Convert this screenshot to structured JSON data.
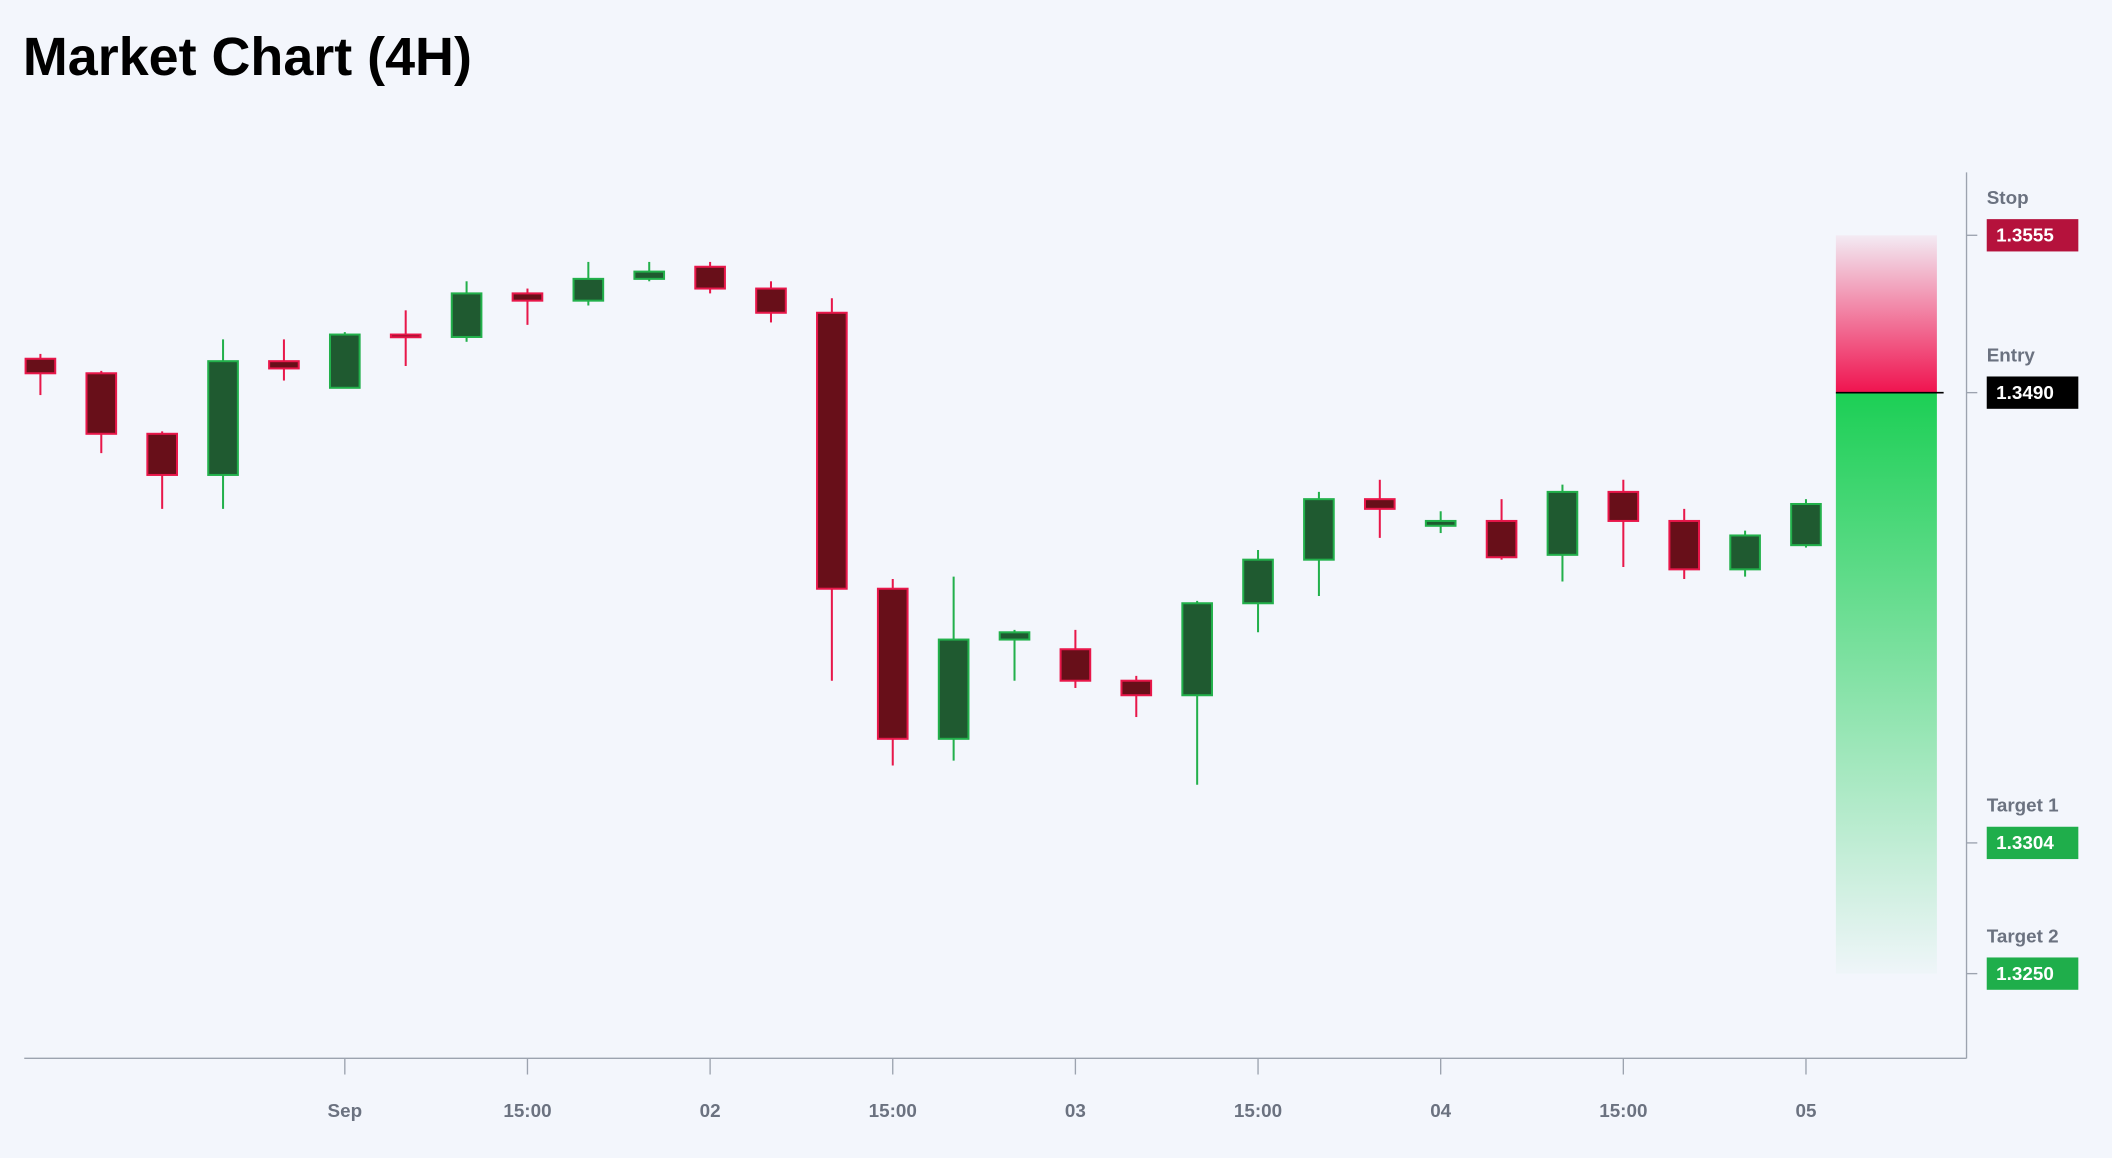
{
  "chart_data": {
    "type": "candlestick",
    "title": "Market Chart (4H)",
    "categories": [
      null,
      null,
      null,
      null,
      null,
      "Sep",
      null,
      null,
      "15:00",
      null,
      null,
      "02",
      null,
      null,
      "15:00",
      null,
      null,
      "03",
      null,
      null,
      "15:00",
      null,
      null,
      "04",
      null,
      null,
      "15:00",
      null,
      null,
      "05"
    ],
    "open": [
      1.3504,
      1.3498,
      1.3473,
      1.3456,
      1.3503,
      1.3492,
      1.3514,
      1.3513,
      1.3531,
      1.3528,
      1.3537,
      1.3542,
      1.3533,
      1.3523,
      1.3409,
      1.3347,
      1.3388,
      1.3384,
      1.3371,
      1.3365,
      1.3403,
      1.3421,
      1.3446,
      1.3435,
      1.3437,
      1.3423,
      1.3449,
      1.3437,
      1.3417,
      1.3427
    ],
    "high": [
      1.3506,
      1.3499,
      1.3474,
      1.3512,
      1.3512,
      1.3515,
      1.3524,
      1.3536,
      1.3533,
      1.3544,
      1.3544,
      1.3544,
      1.3536,
      1.3529,
      1.3413,
      1.3414,
      1.3392,
      1.3392,
      1.3373,
      1.3404,
      1.3425,
      1.3449,
      1.3454,
      1.3441,
      1.3446,
      1.3452,
      1.3454,
      1.3442,
      1.3433,
      1.3446
    ],
    "low": [
      1.3489,
      1.3465,
      1.3442,
      1.3442,
      1.3495,
      1.3492,
      1.3501,
      1.3511,
      1.3518,
      1.3526,
      1.3536,
      1.3531,
      1.3519,
      1.3371,
      1.3336,
      1.3338,
      1.3371,
      1.3368,
      1.3356,
      1.3328,
      1.3391,
      1.3406,
      1.343,
      1.3432,
      1.3421,
      1.3412,
      1.3418,
      1.3413,
      1.3414,
      1.3426
    ],
    "close": [
      1.3498,
      1.3473,
      1.3456,
      1.3503,
      1.35,
      1.3514,
      1.3513,
      1.3531,
      1.3528,
      1.3537,
      1.354,
      1.3533,
      1.3523,
      1.3409,
      1.3347,
      1.3388,
      1.3391,
      1.3371,
      1.3365,
      1.3403,
      1.3421,
      1.3446,
      1.3442,
      1.3437,
      1.3422,
      1.3449,
      1.3437,
      1.3417,
      1.3431,
      1.3444
    ],
    "up_color": "#1f5a30",
    "up_border": "#22b04b",
    "down_color": "#680f19",
    "down_border": "#e8174a",
    "ylim": [
      1.3215,
      1.3581
    ],
    "levels": {
      "names": [
        "Stop",
        "Entry",
        "Target 1",
        "Target 2"
      ],
      "values": [
        1.3555,
        1.349,
        1.3304,
        1.325
      ],
      "value_labels": [
        "1.3555",
        "1.3490",
        "1.3304",
        "1.3250"
      ],
      "colors": [
        "#b5123c",
        "#000000",
        "#1fae4b",
        "#1fae4b"
      ]
    },
    "risk_color": "#f0134f",
    "reward_color": "#1ccf55"
  }
}
